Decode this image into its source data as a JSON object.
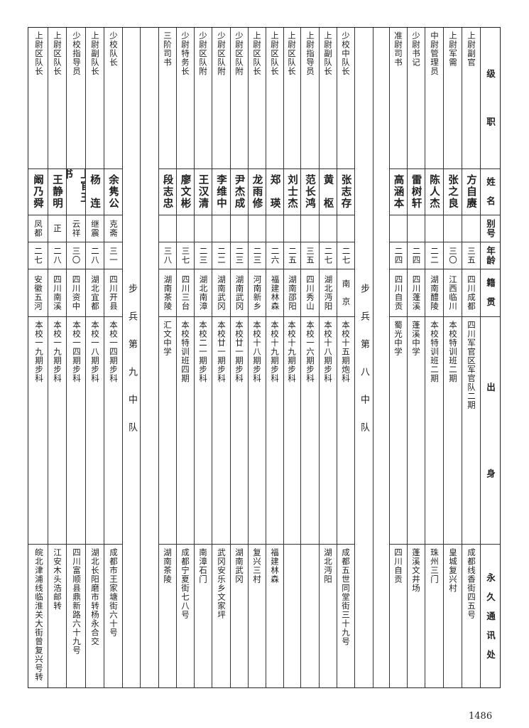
{
  "header": {
    "rank": "级　　　　职",
    "name": "姓　名",
    "alias": "别号",
    "age": "年龄",
    "origin": "籍　贯",
    "education": "出　　　　　　　　身",
    "address": "永　久　通　讯　处"
  },
  "groups": [
    {
      "section": "",
      "rows": [
        {
          "rank": "上尉副官",
          "name": "方自赓",
          "alias": "",
          "age": "三五",
          "origin": "四川成都",
          "education": "四川军官区军官队二期",
          "address": "成都线香街四五号"
        },
        {
          "rank": "上尉军需",
          "name": "张之良",
          "alias": "",
          "age": "三〇",
          "origin": "江西临川",
          "education": "本校特训班二期",
          "address": "皇城复兴村"
        },
        {
          "rank": "中尉管理员",
          "name": "陈人杰",
          "alias": "",
          "age": "二二",
          "origin": "湖南醴陵",
          "education": "本校特训班二期",
          "address": "珠州三门"
        },
        {
          "rank": "少尉书记",
          "name": "雷树轩",
          "alias": "",
          "age": "二四",
          "origin": "四川蓬溪",
          "education": "蓬溪中学",
          "address": "蓬溪文井场"
        },
        {
          "rank": "准尉司书",
          "name": "高涵本",
          "alias": "",
          "age": "二四",
          "origin": "四川自贡",
          "education": "蜀光中学",
          "address": "四川自贡"
        }
      ]
    },
    {
      "section": "步　　兵　　第　　八　　中　　队",
      "rows": [
        {
          "rank": "少校中队长",
          "name": "张志存",
          "alias": "",
          "age": "二七",
          "origin": "南　京",
          "education": "本校十五期炮科",
          "address": "成都五世同堂街三十九号"
        },
        {
          "rank": "上尉副队长",
          "name": "黄　枢",
          "alias": "",
          "age": "二七",
          "origin": "湖北沔阳",
          "education": "本校十八期步科",
          "address": "湖北沔阳"
        },
        {
          "rank": "上尉指导员",
          "name": "范长鸿",
          "alias": "",
          "age": "三五",
          "origin": "四川秀山",
          "education": "本校一六期步科",
          "address": ""
        },
        {
          "rank": "上尉区队长",
          "name": "刘士杰",
          "alias": "",
          "age": "二五",
          "origin": "湖南邵阳",
          "education": "本校十九期步科",
          "address": ""
        },
        {
          "rank": "上尉区队长",
          "name": "郑　瑛",
          "alias": "",
          "age": "二六",
          "origin": "福建林森",
          "education": "本校十九期步科",
          "address": "福建林森"
        },
        {
          "rank": "上尉区队长",
          "name": "龙雨修",
          "alias": "",
          "age": "二三",
          "origin": "河南新乡",
          "education": "本校十八期步科",
          "address": "复兴三村"
        },
        {
          "rank": "少尉区队附",
          "name": "尹杰成",
          "alias": "",
          "age": "二三",
          "origin": "湖南武冈",
          "education": "本校廿一期步科",
          "address": "湖南武冈"
        },
        {
          "rank": "少尉区队附",
          "name": "李维中",
          "alias": "",
          "age": "二二",
          "origin": "湖南武冈",
          "education": "本校廿一期步科",
          "address": "武冈安乐乡文家坪"
        },
        {
          "rank": "少尉区队附",
          "name": "王汉清",
          "alias": "",
          "age": "二三",
          "origin": "湖北南漳",
          "education": "本校二一期步科",
          "address": "南漳石门"
        },
        {
          "rank": "少尉特务长",
          "name": "廖文彬",
          "alias": "",
          "age": "三七",
          "origin": "四川三台",
          "education": "本校特训班四期",
          "address": "成都宁夏街七八号"
        },
        {
          "rank": "三阶司书",
          "name": "段志忠",
          "alias": "",
          "age": "三八",
          "origin": "湖南茶陵",
          "education": "汇文中学",
          "address": "湖南茶陵"
        }
      ]
    },
    {
      "section": "步　　兵　　第　　九　　中　　队",
      "rows": [
        {
          "rank": "少校队长",
          "name": "余隽公",
          "alias": "克斋",
          "age": "三一",
          "origin": "四川开县",
          "education": "本校一四期步科",
          "address": "成都市王家塘街六十号"
        },
        {
          "rank": "上尉副队长",
          "name": "杨　连",
          "alias": "继震",
          "age": "二八",
          "origin": "湖北宜都",
          "education": "本校一八期步科",
          "address": "湖北长阳磨市转杨永合交"
        },
        {
          "rank": "少校指导员",
          "name": "上官玉书",
          "alias": "云祥",
          "age": "三〇",
          "origin": "四川资中",
          "education": "本校一四期步科",
          "address": "四川富顺县鼎新路六十九号"
        },
        {
          "rank": "上尉区队长",
          "name": "王静明",
          "alias": "正",
          "age": "二八",
          "origin": "四川南溪",
          "education": "本校一九期步科",
          "address": "江安木头浩邮转"
        },
        {
          "rank": "上尉区队长",
          "name": "阚乃舜",
          "alias": "凤都",
          "age": "二七",
          "origin": "安徽五河",
          "education": "本校一九期步科",
          "address": "皖北津浦线临淮关大街曾复兴号转交"
        }
      ]
    }
  ],
  "page_number": "1486"
}
